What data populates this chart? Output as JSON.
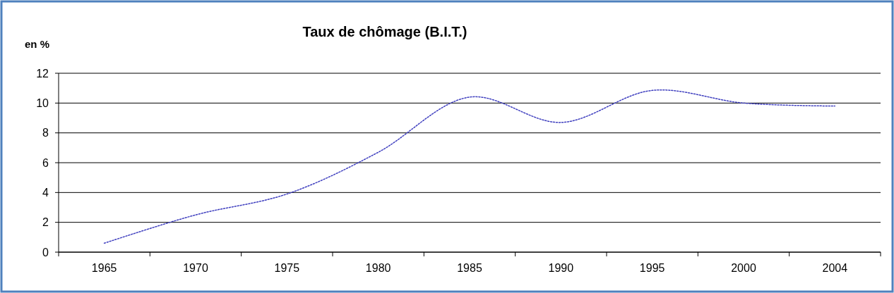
{
  "chart_data": {
    "type": "line",
    "title": "Taux de chômage (B.I.T.)",
    "ylabel": "en %",
    "categories": [
      "1965",
      "1970",
      "1975",
      "1980",
      "1985",
      "1990",
      "1995",
      "2000",
      "2004"
    ],
    "series": [
      {
        "color": "#3f3fbf",
        "values": [
          0.6,
          2.5,
          3.9,
          6.7,
          10.4,
          8.7,
          10.85,
          10.0,
          9.8
        ]
      }
    ],
    "ylim": [
      0,
      12
    ],
    "yticks": [
      0,
      2,
      4,
      6,
      8,
      10,
      12
    ],
    "grid": "y",
    "marker": "none",
    "line_style": "dotted"
  }
}
